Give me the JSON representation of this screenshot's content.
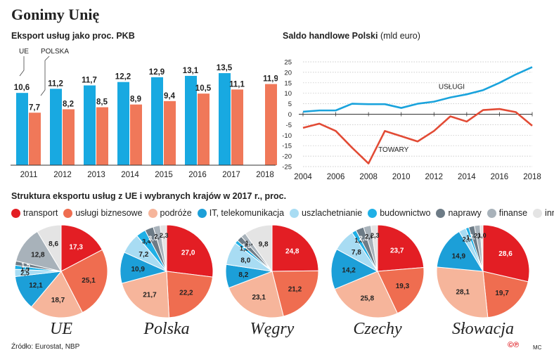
{
  "title": "Gonimy Unię",
  "source": "Źródło: Eurostat, NBP",
  "copyright": "©℗",
  "author": "MC",
  "colors": {
    "ue": "#18a9e1",
    "polska": "#f07859",
    "line_uslugi": "#1aa3dc",
    "line_towary": "#e24b35",
    "transport": "#e31e24",
    "uslugi_biznesowe": "#ef6d50",
    "podroze": "#f6b59b",
    "it": "#1c9fd8",
    "uszlachetnianie": "#a8dcf3",
    "budownictwo": "#1fb0e6",
    "naprawy": "#6d7b86",
    "finanse": "#a8b2ba",
    "inne": "#e4e4e4"
  },
  "chart_data": [
    {
      "type": "bar",
      "title": "Eksport usług jako proc. PKB",
      "categories": [
        "2011",
        "2012",
        "2013",
        "2014",
        "2015",
        "2016",
        "2017",
        "2018"
      ],
      "series": [
        {
          "name": "UE",
          "values": [
            10.6,
            11.2,
            11.7,
            12.2,
            12.9,
            13.1,
            13.5,
            null
          ],
          "labels": [
            "10,6",
            "11,2",
            "11,7",
            "12,2",
            "12,9",
            "13,1",
            "13,5",
            ""
          ]
        },
        {
          "name": "POLSKA",
          "values": [
            7.7,
            8.2,
            8.5,
            8.9,
            9.4,
            10.5,
            11.1,
            11.9
          ],
          "labels": [
            "7,7",
            "8,2",
            "8,5",
            "8,9",
            "9,4",
            "10,5",
            "11,1",
            "11,9"
          ]
        }
      ],
      "ylim": [
        0,
        14.5
      ]
    },
    {
      "type": "line",
      "title": "Saldo handlowe Polski",
      "unit": "(mld euro)",
      "x": [
        2004,
        2005,
        2006,
        2007,
        2008,
        2009,
        2010,
        2011,
        2012,
        2013,
        2014,
        2015,
        2016,
        2017,
        2018
      ],
      "x_ticks": [
        "2004",
        "2006",
        "2008",
        "2010",
        "2012",
        "2014",
        "2016",
        "2018"
      ],
      "y_ticks": [
        "25",
        "20",
        "15",
        "10",
        "5",
        "0",
        "-5",
        "-10",
        "-15",
        "-20",
        "-25"
      ],
      "ylim": [
        -25,
        25
      ],
      "series": [
        {
          "name": "USŁUGI",
          "values": [
            1.2,
            1.8,
            1.8,
            5.0,
            4.8,
            4.8,
            3.0,
            5.0,
            6.0,
            8.0,
            9.5,
            11.5,
            15.0,
            19.0,
            22.5
          ]
        },
        {
          "name": "TOWARY",
          "values": [
            -6.5,
            -4.5,
            -8.0,
            -16.0,
            -23.5,
            -8.0,
            -10.5,
            -13.0,
            -8.0,
            -1.0,
            -3.5,
            2.0,
            2.5,
            1.0,
            -5.5
          ]
        }
      ]
    },
    {
      "type": "pie",
      "title": "Struktura eksportu usług z UE i wybranych krajów w 2017 r., proc.",
      "categories": [
        "transport",
        "usługi biznesowe",
        "podróże",
        "IT, telekomunikacja",
        "uszlachetnianie",
        "budownictwo",
        "naprawy",
        "finanse",
        "inne"
      ],
      "pies": [
        {
          "name": "UE",
          "values": [
            17.3,
            25.1,
            18.7,
            12.1,
            2.5,
            1.4,
            1.5,
            12.8,
            8.6
          ],
          "labels": [
            "17,3",
            "25,1",
            "18,7",
            "12,1",
            "2,5",
            "1,4",
            "1,5",
            "12,8",
            "8,6"
          ]
        },
        {
          "name": "Polska",
          "values": [
            27.0,
            22.2,
            21.7,
            10.9,
            7.2,
            3.4,
            3.0,
            2.4,
            2.3
          ],
          "labels": [
            "27,0",
            "22,2",
            "21,7",
            "10,9",
            "7,2",
            "3,4",
            "3,0",
            "2,4",
            "2,3"
          ]
        },
        {
          "name": "Węgry",
          "values": [
            24.8,
            21.2,
            23.1,
            8.2,
            8.0,
            1.2,
            1.9,
            1.7,
            9.8
          ],
          "labels": [
            "24,8",
            "21,2",
            "23,1",
            "8,2",
            "8,0",
            "1,2",
            "1,9",
            "1,7",
            "9,8"
          ]
        },
        {
          "name": "Czechy",
          "values": [
            23.7,
            19.3,
            25.8,
            14.2,
            7.8,
            1.6,
            2.8,
            2.6,
            2.3
          ],
          "labels": [
            "23,7",
            "19,3",
            "25,8",
            "14,2",
            "7,8",
            "1,6",
            "2,8",
            "2,6",
            "2,3"
          ]
        },
        {
          "name": "Słowacja",
          "values": [
            28.6,
            19.7,
            28.1,
            14.9,
            2.5,
            1.1,
            2.0,
            2.0,
            1.0
          ],
          "labels": [
            "28,6",
            "19,7",
            "28,1",
            "14,9",
            "2,5",
            "1,1",
            "2,0",
            "2,0",
            "1,0"
          ]
        }
      ]
    }
  ]
}
